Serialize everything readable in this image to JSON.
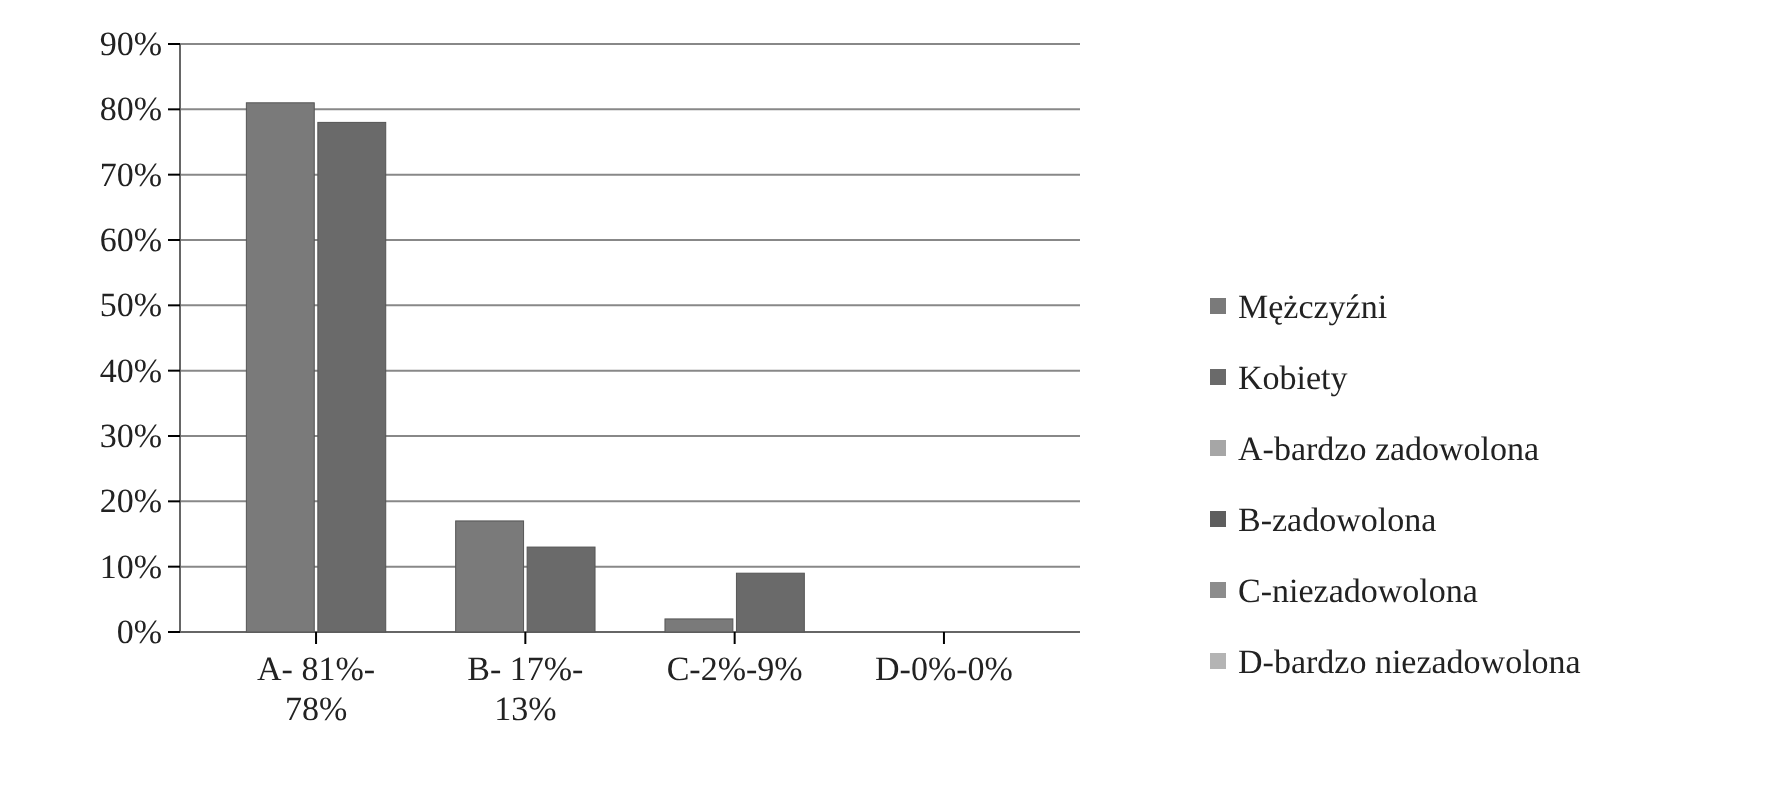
{
  "chart_data": {
    "type": "bar",
    "categories": [
      "A- 81%-78%",
      "B- 17%-13%",
      "C-2%-9%",
      "D-0%-0%"
    ],
    "series": [
      {
        "name": "Mężczyźni",
        "color": "#7a7a7a",
        "values": [
          81,
          17,
          2,
          0
        ]
      },
      {
        "name": "Kobiety",
        "color": "#6a6a6a",
        "values": [
          78,
          13,
          9,
          0
        ]
      },
      {
        "name": "A-bardzo zadowolona",
        "color": "#a6a6a6",
        "values": [
          null,
          null,
          null,
          null
        ]
      },
      {
        "name": "B-zadowolona",
        "color": "#5e5e5e",
        "values": [
          null,
          null,
          null,
          null
        ]
      },
      {
        "name": "C-niezadowolona",
        "color": "#8c8c8c",
        "values": [
          null,
          null,
          null,
          null
        ]
      },
      {
        "name": "D-bardzo niezadowolona",
        "color": "#b4b4b4",
        "values": [
          null,
          null,
          null,
          null
        ]
      }
    ],
    "ylim": [
      0,
      90
    ],
    "yticks": [
      {
        "value": 0,
        "label": "0%"
      },
      {
        "value": 10,
        "label": "10%"
      },
      {
        "value": 20,
        "label": "20%"
      },
      {
        "value": 30,
        "label": "30%"
      },
      {
        "value": 40,
        "label": "40%"
      },
      {
        "value": 50,
        "label": "50%"
      },
      {
        "value": 60,
        "label": "60%"
      },
      {
        "value": 70,
        "label": "70%"
      },
      {
        "value": 80,
        "label": "80%"
      },
      {
        "value": 90,
        "label": "90%"
      }
    ],
    "grid": "y",
    "legend": "right"
  }
}
